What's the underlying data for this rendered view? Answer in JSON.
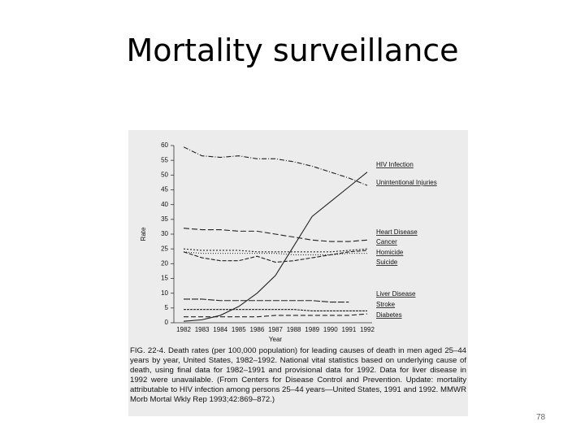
{
  "slide_title": "Mortality surveillance",
  "page_number": "78",
  "chart_data": {
    "type": "line",
    "xlabel": "Year",
    "ylabel": "Rate",
    "categories": [
      "1982",
      "1983",
      "1984",
      "1985",
      "1986",
      "1987",
      "1988",
      "1989",
      "1990",
      "1991",
      "1992"
    ],
    "ylim": [
      0,
      60
    ],
    "yticks": [
      0,
      5,
      10,
      15,
      20,
      25,
      30,
      35,
      40,
      45,
      50,
      55,
      60
    ],
    "series": [
      {
        "name": "HIV Infection",
        "color": "#222",
        "values": [
          0.5,
          1,
          2.5,
          5.5,
          10,
          16,
          26,
          36,
          41,
          46,
          51
        ]
      },
      {
        "name": "Unintentional Injuries",
        "color": "#222",
        "values": [
          59.5,
          56.5,
          56,
          56.5,
          55.5,
          55.5,
          54.5,
          53,
          51,
          49,
          46.5
        ]
      },
      {
        "name": "Heart Disease",
        "color": "#222",
        "values": [
          32,
          31.5,
          31.5,
          31,
          31,
          30,
          29,
          28,
          27.5,
          27.5,
          28
        ]
      },
      {
        "name": "Cancer",
        "color": "#222",
        "values": [
          25,
          24.5,
          24.5,
          24.5,
          24,
          24,
          24,
          24,
          24,
          24.5,
          25
        ]
      },
      {
        "name": "Homicide",
        "color": "#222",
        "values": [
          24,
          22,
          21,
          21,
          22.5,
          20.5,
          21,
          22,
          23,
          24,
          24.5
        ]
      },
      {
        "name": "Suicide",
        "color": "#222",
        "values": [
          24,
          23.5,
          23.5,
          23.5,
          23.5,
          23.5,
          23,
          23,
          23,
          23.5,
          23.5
        ]
      },
      {
        "name": "Liver Disease",
        "color": "#222",
        "values": [
          8,
          8,
          7.5,
          7.5,
          7.5,
          7.5,
          7.5,
          7.5,
          7,
          7,
          null
        ]
      },
      {
        "name": "Stroke",
        "color": "#222",
        "values": [
          4.5,
          4.5,
          4.5,
          4.5,
          4.5,
          4.5,
          4.5,
          4,
          4,
          4,
          4
        ]
      },
      {
        "name": "Diabetes",
        "color": "#222",
        "values": [
          2,
          2,
          2,
          2,
          2,
          2.5,
          2.5,
          2.5,
          2.5,
          2.5,
          3
        ]
      }
    ],
    "caption": "FIG. 22-4. Death rates (per 100,000 population) for leading causes of death in men aged 25–44 years by year, United States, 1982–1992. National vital statistics based on underlying cause of death, using final data for 1982–1991 and provisional data for 1992. Data for liver disease in 1992 were unavailable. (From Centers for Disease Control and Prevention. Update: mortality attributable to HIV infection among persons 25–44 years—United States, 1991 and 1992. MMWR Morb Mortal Wkly Rep 1993;42:869–872.)"
  }
}
